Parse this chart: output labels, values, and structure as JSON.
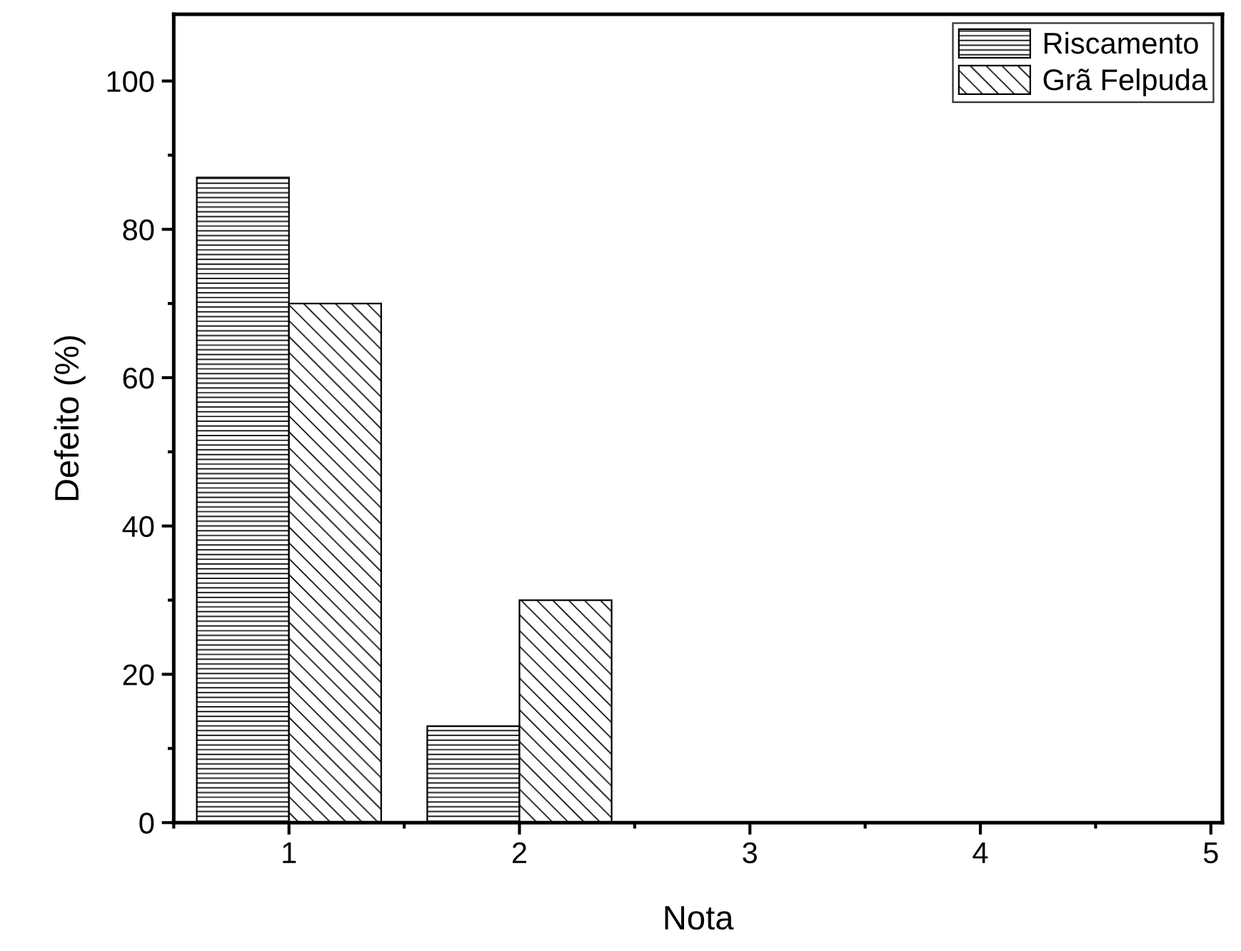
{
  "chart_data": {
    "type": "bar",
    "xlabel": "Nota",
    "ylabel": "Defeito (%)",
    "x": [
      1,
      2,
      3,
      4,
      5
    ],
    "series": [
      {
        "name": "Riscamento",
        "color": "#000000",
        "values": [
          87,
          13,
          0,
          0,
          0
        ]
      },
      {
        "name": "Grã Felpuda",
        "color": "#000000",
        "values": [
          70,
          30,
          0,
          0,
          0
        ]
      }
    ],
    "xlim": [
      0.5,
      5.05
    ],
    "xticks": [
      1,
      2,
      3,
      4,
      5
    ],
    "ylim": [
      0,
      109
    ],
    "yticks": [
      0,
      20,
      40,
      60,
      80,
      100
    ],
    "grid": false,
    "legend": "top right"
  }
}
